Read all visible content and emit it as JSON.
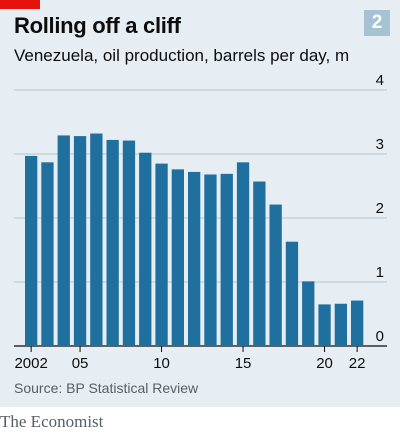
{
  "header": {
    "title": "Rolling off a cliff",
    "subtitle": "Venezuela, oil production, barrels per day, m",
    "chart_number": "2"
  },
  "footer": {
    "source": "Source: BP Statistical Review",
    "brand": "The Economist"
  },
  "colors": {
    "bar": "#1f6f9f",
    "panel": "#e6eef3",
    "accent": "#e3120b",
    "badge": "#a6c3d4"
  },
  "chart_data": {
    "type": "bar",
    "title": "Rolling off a cliff",
    "subtitle": "Venezuela, oil production, barrels per day, m",
    "xlabel": "",
    "ylabel": "",
    "categories": [
      "2002",
      "2003",
      "2004",
      "2005",
      "2006",
      "2007",
      "2008",
      "2009",
      "2010",
      "2011",
      "2012",
      "2013",
      "2014",
      "2015",
      "2016",
      "2017",
      "2018",
      "2019",
      "2020",
      "2021",
      "2022"
    ],
    "values": [
      2.97,
      2.87,
      3.29,
      3.28,
      3.32,
      3.22,
      3.21,
      3.02,
      2.85,
      2.76,
      2.72,
      2.68,
      2.69,
      2.87,
      2.57,
      2.21,
      1.63,
      1.01,
      0.65,
      0.66,
      0.71
    ],
    "x_tick_labels": [
      "2002",
      "",
      "",
      "05",
      "",
      "",
      "",
      "",
      "10",
      "",
      "",
      "",
      "",
      "15",
      "",
      "",
      "",
      "",
      "20",
      "",
      "22"
    ],
    "y_ticks": [
      "0",
      "1",
      "2",
      "3",
      "4"
    ],
    "ylim": [
      0,
      4
    ],
    "y_axis_side": "right",
    "grid": true,
    "source": "Source: BP Statistical Review"
  }
}
